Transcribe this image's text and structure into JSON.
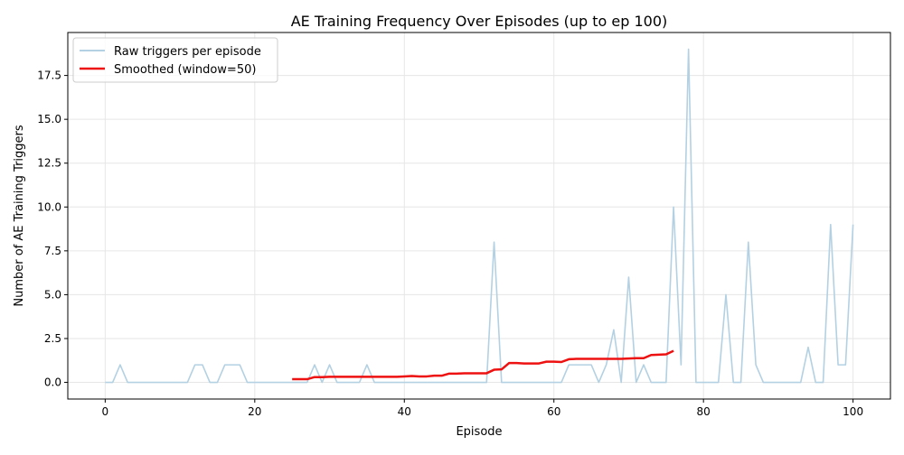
{
  "chart_data": {
    "type": "line",
    "title": "AE Training Frequency Over Episodes (up to ep 100)",
    "xlabel": "Episode",
    "ylabel": "Number of AE Training Triggers",
    "xlim": [
      -5,
      105
    ],
    "ylim": [
      -0.95,
      19.95
    ],
    "x_ticks": [
      0,
      20,
      40,
      60,
      80,
      100
    ],
    "x_tick_labels": [
      "0",
      "20",
      "40",
      "60",
      "80",
      "100"
    ],
    "y_ticks": [
      0,
      2.5,
      5,
      7.5,
      10,
      12.5,
      15,
      17.5
    ],
    "y_tick_labels": [
      "0.0",
      "2.5",
      "5.0",
      "7.5",
      "10.0",
      "12.5",
      "15.0",
      "17.5"
    ],
    "grid": true,
    "legend_position": "top-left",
    "series": [
      {
        "name": "Raw triggers per episode",
        "color": "#b3d1e3",
        "x": [
          0,
          1,
          2,
          3,
          4,
          5,
          6,
          7,
          8,
          9,
          10,
          11,
          12,
          13,
          14,
          15,
          16,
          17,
          18,
          19,
          20,
          21,
          22,
          23,
          24,
          25,
          26,
          27,
          28,
          29,
          30,
          31,
          32,
          33,
          34,
          35,
          36,
          37,
          38,
          39,
          40,
          41,
          42,
          43,
          44,
          45,
          46,
          47,
          48,
          49,
          50,
          51,
          52,
          53,
          54,
          55,
          56,
          57,
          58,
          59,
          60,
          61,
          62,
          63,
          64,
          65,
          66,
          67,
          68,
          69,
          70,
          71,
          72,
          73,
          74,
          75,
          76,
          77,
          78,
          79,
          80,
          81,
          82,
          83,
          84,
          85,
          86,
          87,
          88,
          89,
          90,
          91,
          92,
          93,
          94,
          95,
          96,
          97,
          98,
          99,
          100
        ],
        "y": [
          0,
          0,
          1,
          0,
          0,
          0,
          0,
          0,
          0,
          0,
          0,
          0,
          1,
          1,
          0,
          0,
          1,
          1,
          1,
          0,
          0,
          0,
          0,
          0,
          0,
          0,
          0,
          0,
          1,
          0,
          1,
          0,
          0,
          0,
          0,
          1,
          0,
          0,
          0,
          0,
          0,
          0,
          0,
          0,
          0,
          0,
          0,
          0,
          0,
          0,
          0,
          0,
          8,
          0,
          0,
          0,
          0,
          0,
          0,
          0,
          0,
          0,
          1,
          1,
          1,
          1,
          0,
          1,
          3,
          0,
          6,
          0,
          1,
          0,
          0,
          0,
          10,
          1,
          19,
          0,
          0,
          0,
          0,
          5,
          0,
          0,
          8,
          1,
          0,
          0,
          0,
          0,
          0,
          0,
          2,
          0,
          0,
          9,
          1,
          1,
          9
        ]
      },
      {
        "name": "Smoothed (window=50)",
        "color": "#ee1111",
        "x": [
          25,
          26,
          27,
          28,
          29,
          30,
          31,
          32,
          33,
          34,
          35,
          36,
          37,
          38,
          39,
          40,
          41,
          42,
          43,
          44,
          45,
          46,
          47,
          48,
          49,
          50,
          51,
          52,
          53,
          54,
          55,
          56,
          57,
          58,
          59,
          60,
          61,
          62,
          63,
          64,
          65,
          66,
          67,
          68,
          69,
          70,
          71,
          72,
          73,
          74,
          75,
          76
        ],
        "y": [
          0.18,
          0.18,
          0.18,
          0.3,
          0.3,
          0.32,
          0.32,
          0.32,
          0.32,
          0.32,
          0.32,
          0.32,
          0.32,
          0.32,
          0.32,
          0.34,
          0.36,
          0.34,
          0.34,
          0.38,
          0.38,
          0.5,
          0.5,
          0.52,
          0.52,
          0.52,
          0.52,
          0.72,
          0.74,
          1.1,
          1.1,
          1.08,
          1.08,
          1.08,
          1.18,
          1.18,
          1.16,
          1.32,
          1.34,
          1.34,
          1.34,
          1.34,
          1.34,
          1.34,
          1.34,
          1.36,
          1.38,
          1.38,
          1.56,
          1.58,
          1.6,
          1.8
        ]
      }
    ]
  }
}
